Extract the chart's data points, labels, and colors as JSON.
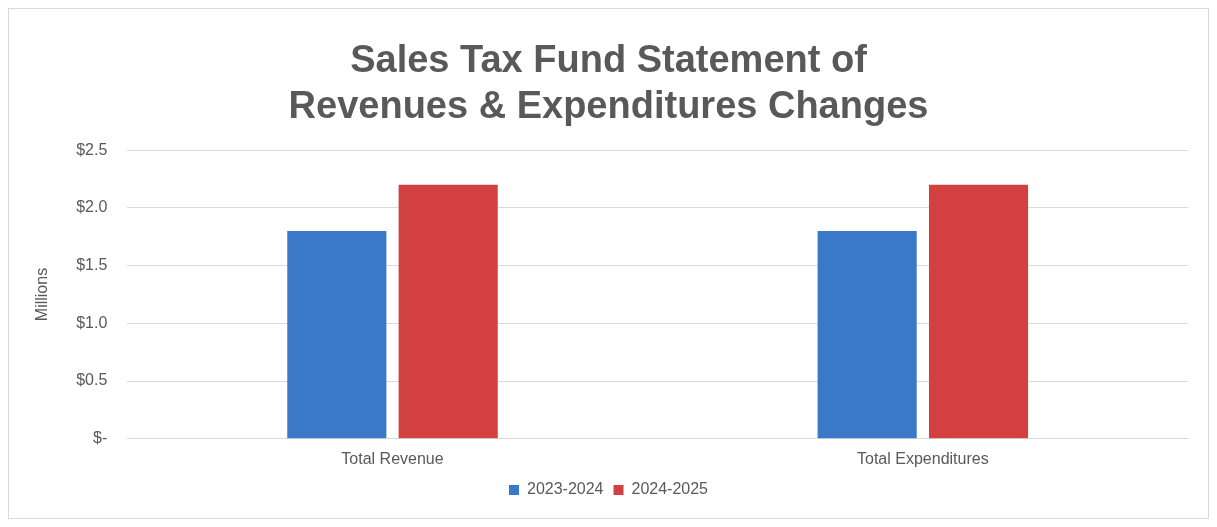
{
  "chart_data": {
    "type": "bar",
    "title": "Sales Tax Fund Statement of Revenues & Expenditures Changes",
    "ylabel": "Millions",
    "categories": [
      "Total Revenue",
      "Total Expenditures"
    ],
    "series": [
      {
        "name": "2023-2024",
        "color": "#3a78c8",
        "values": [
          1.8,
          1.8
        ]
      },
      {
        "name": "2024-2025",
        "color": "#d24040",
        "values": [
          2.2,
          2.2
        ]
      }
    ],
    "ylim": [
      0,
      2.5
    ],
    "yticks": [
      {
        "value": 0,
        "label": "$-"
      },
      {
        "value": 0.5,
        "label": "$0.5"
      },
      {
        "value": 1,
        "label": "$1.0"
      },
      {
        "value": 1.5,
        "label": "$1.5"
      },
      {
        "value": 2,
        "label": "$2.0"
      },
      {
        "value": 2.5,
        "label": "$2.5"
      }
    ],
    "grid": "y",
    "legend": "bottom"
  }
}
